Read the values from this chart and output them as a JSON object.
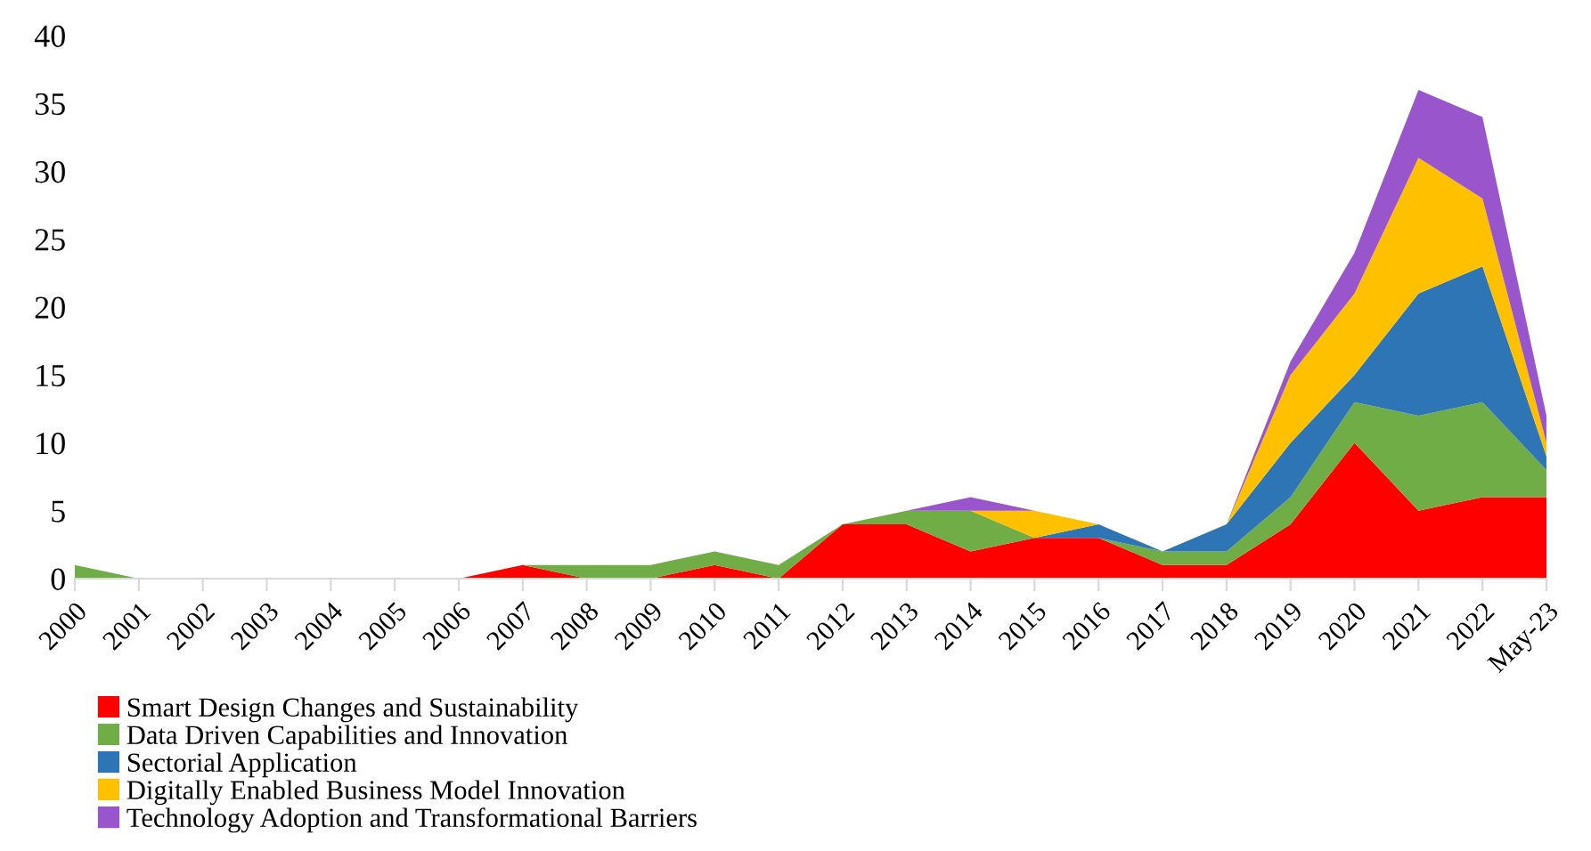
{
  "chart_data": {
    "type": "area",
    "stacked": true,
    "categories": [
      "2000",
      "2001",
      "2002",
      "2003",
      "2004",
      "2005",
      "2006",
      "2007",
      "2008",
      "2009",
      "2010",
      "2011",
      "2012",
      "2013",
      "2014",
      "2015",
      "2016",
      "2017",
      "2018",
      "2019",
      "2020",
      "2021",
      "2022",
      "May-23"
    ],
    "series": [
      {
        "name": "Smart Design Changes and Sustainability",
        "color": "#ff0000",
        "values": [
          0,
          0,
          0,
          0,
          0,
          0,
          0,
          1,
          0,
          0,
          1,
          0,
          4,
          4,
          2,
          3,
          3,
          1,
          1,
          4,
          10,
          5,
          6,
          6
        ]
      },
      {
        "name": "Data Driven Capabilities and Innovation",
        "color": "#70ad47",
        "values": [
          1,
          0,
          0,
          0,
          0,
          0,
          0,
          0,
          1,
          1,
          1,
          1,
          0,
          1,
          3,
          0,
          0,
          1,
          1,
          2,
          3,
          7,
          7,
          2
        ]
      },
      {
        "name": "Sectorial Application",
        "color": "#2e75b6",
        "values": [
          0,
          0,
          0,
          0,
          0,
          0,
          0,
          0,
          0,
          0,
          0,
          0,
          0,
          0,
          0,
          0,
          1,
          0,
          2,
          4,
          2,
          9,
          10,
          1
        ]
      },
      {
        "name": "Digitally Enabled Business Model Innovation",
        "color": "#ffc000",
        "values": [
          0,
          0,
          0,
          0,
          0,
          0,
          0,
          0,
          0,
          0,
          0,
          0,
          0,
          0,
          0,
          2,
          0,
          0,
          0,
          5,
          6,
          10,
          5,
          1
        ]
      },
      {
        "name": "Technology Adoption and Transformational Barriers",
        "color": "#9955cc",
        "values": [
          0,
          0,
          0,
          0,
          0,
          0,
          0,
          0,
          0,
          0,
          0,
          0,
          0,
          0,
          1,
          0,
          0,
          0,
          0,
          1,
          3,
          5,
          6,
          2
        ]
      }
    ],
    "ylim": [
      0,
      40
    ],
    "yticks": [
      0,
      5,
      10,
      15,
      20,
      25,
      30,
      35,
      40
    ],
    "grid": false,
    "legend": "bottom left"
  }
}
